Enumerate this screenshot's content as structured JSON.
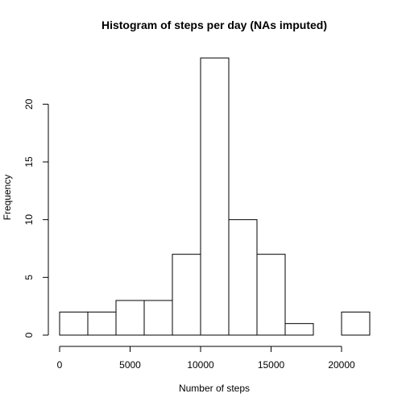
{
  "chart_data": {
    "type": "bar",
    "title": "Histogram of steps per day (NAs imputed)",
    "xlabel": "Number of steps",
    "ylabel": "Frequency",
    "bin_edges": [
      0,
      2000,
      4000,
      6000,
      8000,
      10000,
      12000,
      14000,
      16000,
      18000,
      20000,
      22000
    ],
    "values": [
      2,
      2,
      3,
      3,
      7,
      24,
      10,
      7,
      1,
      0,
      2
    ],
    "xlim": [
      0,
      22000
    ],
    "ylim": [
      0,
      24
    ],
    "x_ticks": [
      0,
      5000,
      10000,
      15000,
      20000
    ],
    "x_tick_labels": [
      "0",
      "5000",
      "10000",
      "15000",
      "20000"
    ],
    "y_ticks": [
      0,
      5,
      10,
      15,
      20
    ],
    "y_tick_labels": [
      "0",
      "5",
      "10",
      "15",
      "20"
    ],
    "grid": false,
    "bar_fill": "#ffffff",
    "bar_stroke": "#000000"
  }
}
